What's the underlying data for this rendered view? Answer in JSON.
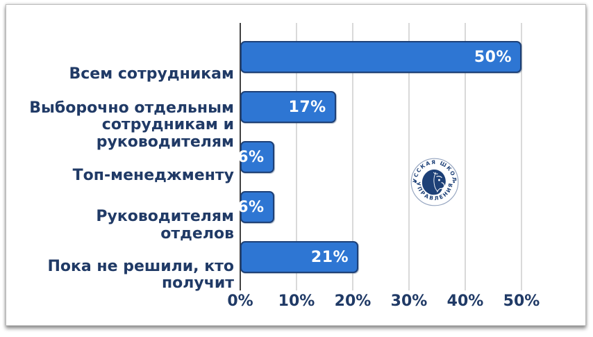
{
  "chart_data": {
    "type": "bar",
    "orientation": "horizontal",
    "title": "",
    "xlabel": "",
    "ylabel": "",
    "categories": [
      "Всем сотрудникам",
      "Выборочно отдельным\nсотрудникам и\nруководителям",
      "Топ-менеджменту",
      "Руководителям\nотделов",
      "Пока не решили, кто\nполучит"
    ],
    "values": [
      50,
      17,
      6,
      6,
      21
    ],
    "value_labels": [
      "50%",
      "17%",
      "6%",
      "6%",
      "21%"
    ],
    "x_ticks": [
      "0%",
      "10%",
      "20%",
      "30%",
      "40%",
      "50%"
    ],
    "xlim": [
      0,
      50
    ],
    "grid": "vertical",
    "legend": "none",
    "colors": {
      "bar_fill": "#2e76d3",
      "bar_border": "#1d4077",
      "value_text": "#ffffff",
      "category_text": "#203a66",
      "tick_text": "#203a66",
      "gridline": "#d9d9d9",
      "axis_line": "#404040"
    }
  },
  "watermark": {
    "ring_text_top": "РУССКАЯ ШКОЛА",
    "ring_text_bottom": "УПРАВЛЕНИЯ",
    "color": "#1d4077"
  }
}
